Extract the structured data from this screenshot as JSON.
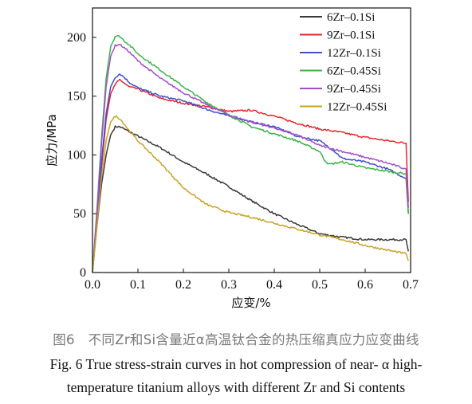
{
  "chart_data": {
    "type": "line",
    "xlabel": "应变/%",
    "ylabel": "应力/MPa",
    "xlim": [
      0,
      0.7
    ],
    "ylim": [
      0,
      225
    ],
    "xticks": [
      0.0,
      0.1,
      0.2,
      0.3,
      0.4,
      0.5,
      0.6,
      0.7
    ],
    "xtick_labels": [
      "0.0",
      "0.1",
      "0.2",
      "0.3",
      "0.4",
      "0.5",
      "0.6",
      "0.7"
    ],
    "yticks": [
      0,
      50,
      100,
      150,
      200
    ],
    "ytick_labels": [
      "0",
      "50",
      "100",
      "150",
      "200"
    ],
    "grid": false,
    "legend_position": "top-right",
    "series": [
      {
        "name": "6Zr–0.1Si",
        "color": "#3a3a3a",
        "x": [
          0,
          0.01,
          0.02,
          0.03,
          0.04,
          0.05,
          0.06,
          0.07,
          0.1,
          0.15,
          0.2,
          0.25,
          0.3,
          0.35,
          0.4,
          0.45,
          0.5,
          0.55,
          0.6,
          0.65,
          0.69,
          0.695
        ],
        "y": [
          0,
          40,
          75,
          100,
          117,
          124,
          124,
          122,
          116,
          106,
          94,
          84,
          73,
          61,
          50,
          41,
          33,
          30,
          28,
          28,
          28,
          18
        ]
      },
      {
        "name": "9Zr–0.1Si",
        "color": "#e8262c",
        "x": [
          0,
          0.01,
          0.02,
          0.03,
          0.04,
          0.05,
          0.06,
          0.07,
          0.08,
          0.1,
          0.15,
          0.2,
          0.25,
          0.3,
          0.35,
          0.4,
          0.45,
          0.5,
          0.55,
          0.6,
          0.65,
          0.69,
          0.695
        ],
        "y": [
          0,
          45,
          90,
          130,
          152,
          160,
          164,
          161,
          158,
          156,
          148,
          144,
          141,
          137,
          138,
          133,
          127,
          122,
          119,
          115,
          112,
          110,
          60
        ]
      },
      {
        "name": "12Zr–0.1Si",
        "color": "#3f4fc8",
        "x": [
          0,
          0.01,
          0.02,
          0.03,
          0.04,
          0.05,
          0.06,
          0.07,
          0.08,
          0.1,
          0.15,
          0.2,
          0.25,
          0.3,
          0.35,
          0.4,
          0.45,
          0.5,
          0.53,
          0.55,
          0.6,
          0.65,
          0.69,
          0.695
        ],
        "y": [
          0,
          48,
          95,
          135,
          158,
          166,
          169,
          166,
          162,
          157,
          150,
          146,
          139,
          133,
          128,
          124,
          116,
          112,
          104,
          97,
          94,
          88,
          80,
          50
        ]
      },
      {
        "name": "6Zr–0.45Si",
        "color": "#3ab54a",
        "x": [
          0,
          0.01,
          0.02,
          0.03,
          0.04,
          0.05,
          0.06,
          0.07,
          0.08,
          0.1,
          0.15,
          0.2,
          0.25,
          0.3,
          0.35,
          0.4,
          0.45,
          0.5,
          0.51,
          0.52,
          0.55,
          0.6,
          0.65,
          0.69,
          0.695
        ],
        "y": [
          0,
          55,
          115,
          165,
          192,
          201,
          201,
          197,
          194,
          186,
          172,
          158,
          145,
          134,
          124,
          118,
          112,
          103,
          96,
          92,
          94,
          89,
          86,
          84,
          50
        ]
      },
      {
        "name": "9Zr–0.45Si",
        "color": "#a24fc9",
        "x": [
          0,
          0.01,
          0.02,
          0.03,
          0.04,
          0.05,
          0.06,
          0.07,
          0.08,
          0.1,
          0.15,
          0.2,
          0.25,
          0.3,
          0.35,
          0.4,
          0.45,
          0.5,
          0.55,
          0.6,
          0.65,
          0.69,
          0.695
        ],
        "y": [
          0,
          52,
          110,
          158,
          184,
          193,
          194,
          191,
          188,
          180,
          165,
          153,
          143,
          134,
          128,
          123,
          117,
          108,
          103,
          98,
          93,
          88,
          55
        ]
      },
      {
        "name": "12Zr–0.45Si",
        "color": "#c9a227",
        "x": [
          0,
          0.01,
          0.02,
          0.03,
          0.04,
          0.05,
          0.06,
          0.07,
          0.08,
          0.1,
          0.15,
          0.2,
          0.25,
          0.3,
          0.35,
          0.4,
          0.45,
          0.5,
          0.55,
          0.6,
          0.65,
          0.69,
          0.695
        ],
        "y": [
          0,
          40,
          82,
          112,
          128,
          133,
          131,
          126,
          121,
          112,
          93,
          72,
          58,
          51,
          47,
          42,
          37,
          32,
          28,
          23,
          19,
          16,
          10
        ]
      }
    ]
  },
  "caption": {
    "zh": "图6　不同Zr和Si含量近α高温钛合金的热压缩真应力应变曲线",
    "en_line1": "Fig. 6 True stress-strain curves in hot compression of near- α  high-",
    "en_line2": "temperature titanium alloys with different Zr and Si contents"
  }
}
